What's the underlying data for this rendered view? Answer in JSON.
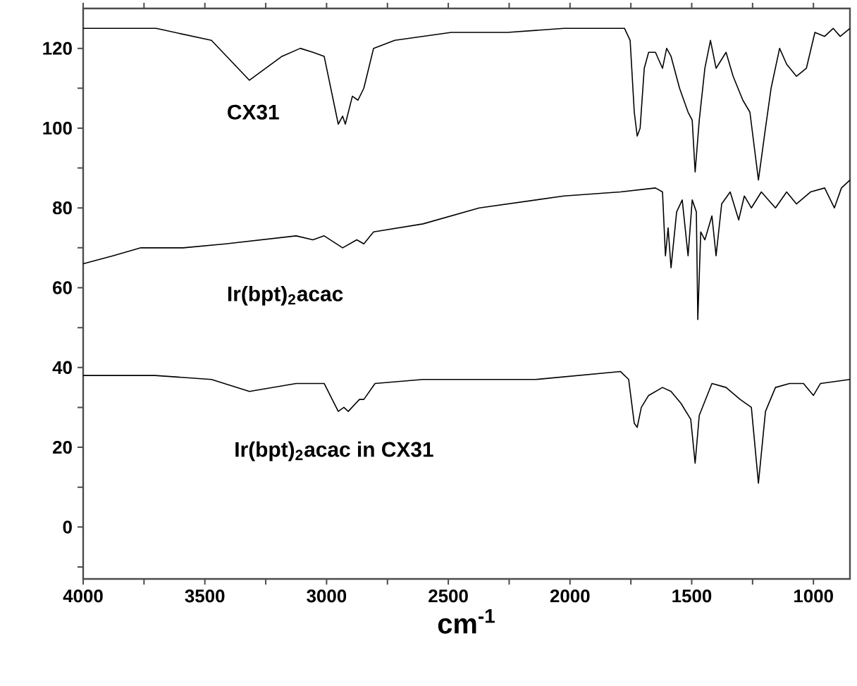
{
  "chart_data": {
    "type": "line",
    "xlabel": "cm$^{-1}$",
    "xlim": [
      4000,
      850
    ],
    "ylim": [
      -13,
      130
    ],
    "xticks": [
      4000,
      {
        "value": 3750,
        "label": null
      },
      3500,
      {
        "value": 3250,
        "label": null
      },
      3000,
      {
        "value": 2750,
        "label": null
      },
      2500,
      {
        "value": 2250,
        "label": null
      },
      2000,
      {
        "value": 1750,
        "label": null
      },
      1500,
      {
        "value": 1250,
        "label": null
      },
      1000
    ],
    "yticks": [
      {
        "value": -10,
        "label": null
      },
      0,
      {
        "value": 10,
        "label": null
      },
      20,
      {
        "value": 30,
        "label": null
      },
      40,
      {
        "value": 50,
        "label": null
      },
      60,
      {
        "value": 70,
        "label": null
      },
      80,
      {
        "value": 90,
        "label": null
      },
      100,
      {
        "value": 110,
        "label": null
      },
      120
    ],
    "grid": false,
    "legend": false,
    "line_style": "solid",
    "series": [
      {
        "name": "CX31",
        "color": "#000000",
        "x": [
          4000,
          3700,
          3473,
          3317,
          3183,
          3108,
          3056,
          3010,
          2952,
          2934,
          2923,
          2894,
          2871,
          2847,
          2807,
          2720,
          2488,
          2257,
          2025,
          1793,
          1776,
          1753,
          1736,
          1724,
          1712,
          1695,
          1677,
          1649,
          1620,
          1603,
          1585,
          1550,
          1515,
          1498,
          1486,
          1469,
          1446,
          1423,
          1400,
          1359,
          1330,
          1290,
          1261,
          1226,
          1197,
          1174,
          1139,
          1110,
          1070,
          1029,
          994,
          954,
          919,
          890,
          850
        ],
        "values": [
          125,
          125,
          122,
          112,
          118,
          120,
          119,
          118,
          101,
          103,
          101,
          108,
          107,
          110,
          120,
          122,
          124,
          124,
          125,
          125,
          125,
          122,
          104,
          98,
          100,
          115,
          119,
          119,
          115,
          120,
          118,
          110,
          104,
          102,
          89,
          102,
          115,
          122,
          115,
          119,
          113,
          107,
          104,
          87,
          100,
          110,
          120,
          116,
          113,
          115,
          124,
          123,
          125,
          123,
          125
        ]
      },
      {
        "name": "Ir(bpt)$_{2}$acac",
        "color": "#000000",
        "x": [
          4000,
          3878,
          3763,
          3589,
          3415,
          3125,
          3056,
          3010,
          2934,
          2876,
          2847,
          2807,
          2604,
          2373,
          2025,
          1793,
          1649,
          1620,
          1608,
          1597,
          1585,
          1562,
          1539,
          1515,
          1498,
          1481,
          1475,
          1463,
          1446,
          1417,
          1400,
          1377,
          1342,
          1307,
          1284,
          1255,
          1214,
          1156,
          1110,
          1070,
          1012,
          954,
          914,
          885,
          850
        ],
        "values": [
          66,
          68,
          70,
          70,
          71,
          73,
          72,
          73,
          70,
          72,
          71,
          74,
          76,
          80,
          83,
          84,
          85,
          84,
          68,
          75,
          65,
          79,
          82,
          68,
          82,
          79,
          52,
          74,
          72,
          78,
          68,
          81,
          84,
          77,
          83,
          80,
          84,
          80,
          84,
          81,
          84,
          85,
          80,
          85,
          87
        ]
      },
      {
        "name": "Ir(bpt)$_{2}$acac in CX31",
        "color": "#000000",
        "x": [
          4000,
          3705,
          3473,
          3317,
          3125,
          3010,
          2952,
          2929,
          2911,
          2865,
          2847,
          2801,
          2604,
          2257,
          2141,
          1793,
          1759,
          1736,
          1724,
          1707,
          1677,
          1620,
          1585,
          1544,
          1504,
          1486,
          1469,
          1417,
          1359,
          1301,
          1255,
          1226,
          1197,
          1156,
          1098,
          1041,
          1000,
          971,
          850
        ],
        "values": [
          38,
          38,
          37,
          34,
          36,
          36,
          29,
          30,
          29,
          32,
          32,
          36,
          37,
          37,
          37,
          39,
          37,
          26,
          25,
          30,
          33,
          35,
          34,
          31,
          27,
          16,
          28,
          36,
          35,
          32,
          30,
          11,
          29,
          35,
          36,
          36,
          33,
          36,
          37
        ]
      }
    ]
  }
}
